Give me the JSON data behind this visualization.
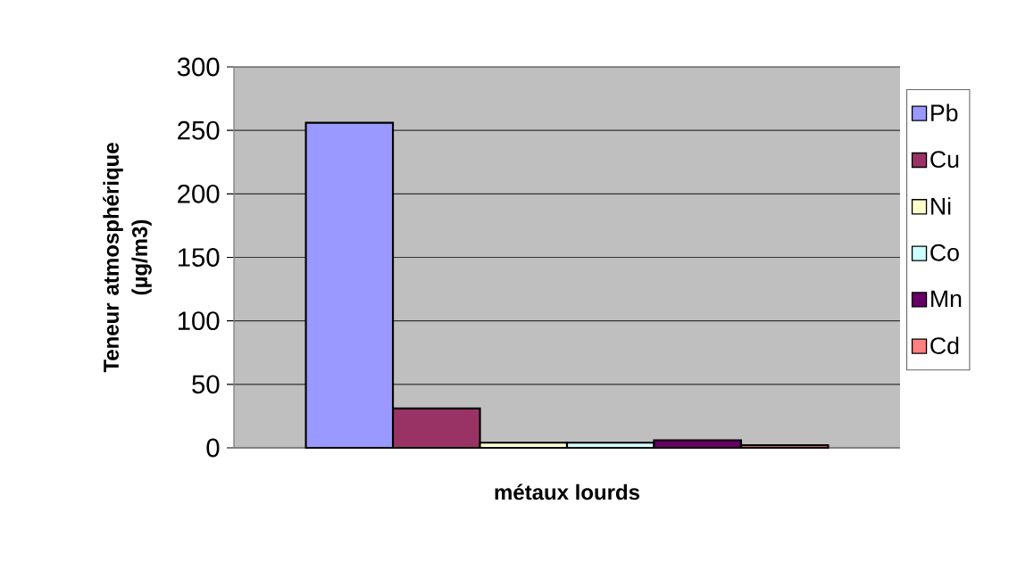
{
  "chart_data": {
    "type": "bar",
    "xlabel": "métaux lourds",
    "ylabel": "Teneur atmosphérique (µg/m3)",
    "categories": [
      null
    ],
    "series": [
      {
        "name": "Pb",
        "color": "#9999ff",
        "values": [
          256
        ]
      },
      {
        "name": "Cu",
        "color": "#993366",
        "values": [
          31
        ]
      },
      {
        "name": "Ni",
        "color": "#ffffcc",
        "values": [
          4
        ]
      },
      {
        "name": "Co",
        "color": "#ccffff",
        "values": [
          4
        ]
      },
      {
        "name": "Mn",
        "color": "#660066",
        "values": [
          6
        ]
      },
      {
        "name": "Cd",
        "color": "#ff8080",
        "values": [
          2
        ]
      }
    ],
    "ylim": [
      0,
      300
    ],
    "yticks": [
      0,
      50,
      100,
      150,
      200,
      250,
      300
    ],
    "grid": "y",
    "legend": "right"
  }
}
